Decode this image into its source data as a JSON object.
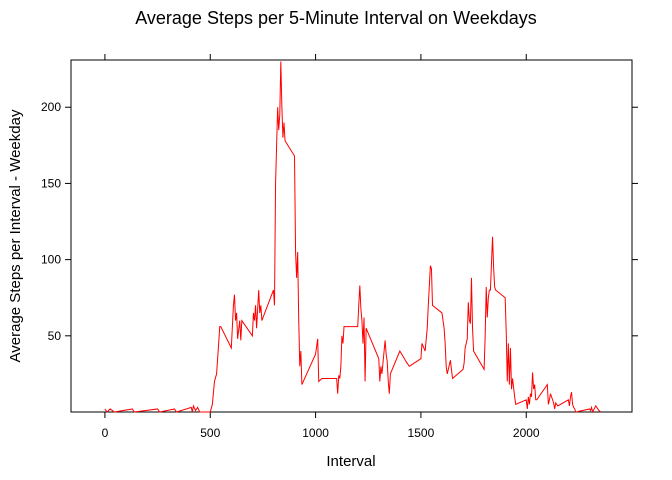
{
  "chart_data": {
    "type": "line",
    "title": "Average Steps per 5-Minute Interval on Weekdays",
    "x_label": "Interval",
    "y_label": "Average Steps per Interval - Weekday",
    "xlim": [
      -161,
      2502
    ],
    "ylim": [
      0,
      231
    ],
    "xticks": [
      0,
      500,
      1000,
      1500,
      2000
    ],
    "yticks": [
      50,
      100,
      150,
      200
    ],
    "series": [
      {
        "name": "Weekday",
        "color": "#ff0000",
        "x": [
          0,
          10,
          25,
          45,
          130,
          140,
          250,
          260,
          330,
          340,
          410,
          415,
          420,
          430,
          440,
          450,
          500,
          510,
          520,
          530,
          540,
          545,
          550,
          600,
          610,
          615,
          620,
          625,
          630,
          640,
          645,
          650,
          700,
          705,
          710,
          715,
          720,
          730,
          735,
          740,
          745,
          800,
          805,
          810,
          815,
          820,
          825,
          830,
          835,
          840,
          845,
          850,
          855,
          900,
          905,
          910,
          915,
          920,
          925,
          930,
          935,
          1000,
          1010,
          1015,
          1030,
          1100,
          1105,
          1110,
          1115,
          1120,
          1125,
          1130,
          1135,
          1200,
          1205,
          1210,
          1215,
          1220,
          1225,
          1230,
          1235,
          1240,
          1300,
          1305,
          1310,
          1315,
          1330,
          1335,
          1340,
          1345,
          1350,
          1355,
          1400,
          1430,
          1445,
          1500,
          1505,
          1520,
          1530,
          1535,
          1545,
          1550,
          1555,
          1600,
          1610,
          1615,
          1620,
          1625,
          1630,
          1640,
          1650,
          1700,
          1705,
          1710,
          1720,
          1725,
          1730,
          1735,
          1740,
          1745,
          1750,
          1800,
          1805,
          1810,
          1815,
          1820,
          1825,
          1830,
          1840,
          1845,
          1850,
          1855,
          1900,
          1905,
          1910,
          1915,
          1920,
          1925,
          1930,
          1935,
          1945,
          1950,
          2000,
          2005,
          2010,
          2015,
          2020,
          2025,
          2030,
          2035,
          2040,
          2045,
          2050,
          2100,
          2105,
          2110,
          2115,
          2130,
          2135,
          2140,
          2150,
          2200,
          2205,
          2210,
          2215,
          2220,
          2225,
          2230,
          2235,
          2300,
          2305,
          2310,
          2315,
          2330,
          2335,
          2340,
          2345,
          2355
        ],
        "values": [
          2,
          0,
          2,
          0,
          2,
          0,
          2,
          0,
          2,
          0,
          3,
          0,
          4,
          1,
          3,
          0,
          0,
          5,
          20,
          25,
          45,
          56,
          56,
          42,
          70,
          77,
          60,
          65,
          48,
          60,
          47,
          60,
          50,
          65,
          60,
          70,
          55,
          80,
          65,
          70,
          60,
          80,
          70,
          150,
          175,
          200,
          185,
          195,
          230,
          200,
          180,
          190,
          178,
          168,
          105,
          88,
          105,
          60,
          30,
          40,
          18,
          38,
          48,
          20,
          22,
          22,
          12,
          24,
          22,
          30,
          50,
          45,
          56,
          56,
          70,
          83,
          68,
          60,
          45,
          62,
          20,
          55,
          35,
          20,
          30,
          25,
          47,
          38,
          33,
          20,
          12,
          25,
          40,
          33,
          30,
          35,
          45,
          40,
          55,
          70,
          96,
          94,
          70,
          65,
          55,
          45,
          30,
          25,
          28,
          34,
          22,
          28,
          32,
          42,
          48,
          72,
          60,
          58,
          88,
          55,
          40,
          28,
          50,
          82,
          62,
          75,
          80,
          80,
          115,
          95,
          82,
          80,
          75,
          52,
          20,
          45,
          18,
          42,
          15,
          22,
          10,
          5,
          8,
          2,
          10,
          5,
          12,
          10,
          26,
          15,
          18,
          8,
          8,
          18,
          5,
          8,
          12,
          6,
          2,
          6,
          4,
          8,
          4,
          10,
          13,
          5,
          3,
          2,
          0,
          2,
          1,
          3,
          0,
          4,
          3,
          2,
          1,
          0
        ]
      }
    ]
  }
}
